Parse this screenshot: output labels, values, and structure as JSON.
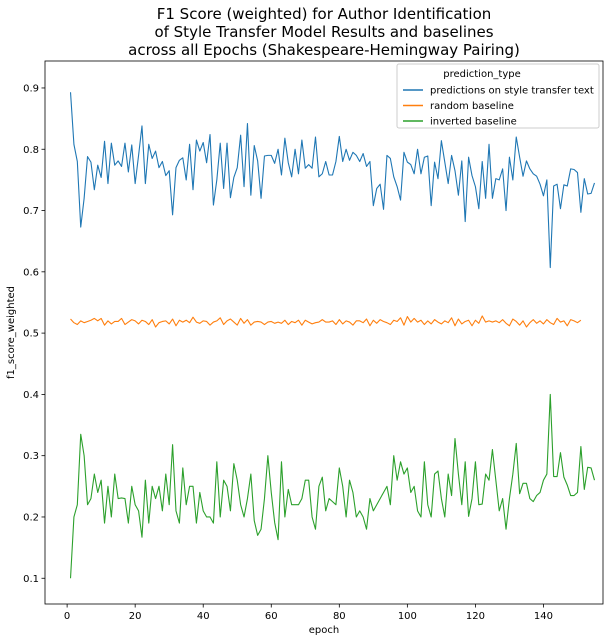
{
  "chart_data": {
    "type": "line",
    "title_lines": [
      "F1 Score (weighted) for Author Identification",
      "of Style Transfer Model Results and baselines",
      "across all Epochs (Shakespeare-Hemingway Pairing)"
    ],
    "xlabel": "epoch",
    "ylabel": "f1_score_weighted",
    "xlim": [
      -6.5,
      157.5
    ],
    "ylim": [
      0.058,
      0.944
    ],
    "xticks": [
      0,
      20,
      40,
      60,
      80,
      100,
      120,
      140
    ],
    "yticks": [
      0.1,
      0.2,
      0.3,
      0.4,
      0.5,
      0.6,
      0.7,
      0.8,
      0.9
    ],
    "legend": {
      "title": "prediction_type",
      "position": "top-right"
    },
    "series": [
      {
        "name": "predictions on style transfer text",
        "color": "#1f77b4",
        "values": [
          0.893,
          0.808,
          0.78,
          0.673,
          0.72,
          0.788,
          0.779,
          0.734,
          0.774,
          0.754,
          0.813,
          0.744,
          0.81,
          0.774,
          0.781,
          0.772,
          0.81,
          0.763,
          0.807,
          0.744,
          0.79,
          0.838,
          0.744,
          0.808,
          0.785,
          0.797,
          0.77,
          0.78,
          0.757,
          0.765,
          0.693,
          0.77,
          0.782,
          0.786,
          0.75,
          0.808,
          0.734,
          0.815,
          0.797,
          0.811,
          0.778,
          0.824,
          0.709,
          0.75,
          0.81,
          0.736,
          0.81,
          0.721,
          0.754,
          0.77,
          0.823,
          0.739,
          0.842,
          0.725,
          0.806,
          0.781,
          0.72,
          0.789,
          0.79,
          0.79,
          0.777,
          0.8,
          0.758,
          0.818,
          0.778,
          0.755,
          0.8,
          0.76,
          0.815,
          0.769,
          0.775,
          0.769,
          0.82,
          0.755,
          0.76,
          0.78,
          0.758,
          0.758,
          0.78,
          0.821,
          0.78,
          0.8,
          0.782,
          0.795,
          0.79,
          0.78,
          0.793,
          0.772,
          0.78,
          0.708,
          0.736,
          0.743,
          0.702,
          0.79,
          0.785,
          0.755,
          0.739,
          0.717,
          0.795,
          0.779,
          0.775,
          0.76,
          0.8,
          0.76,
          0.787,
          0.789,
          0.708,
          0.779,
          0.752,
          0.814,
          0.779,
          0.744,
          0.79,
          0.765,
          0.725,
          0.781,
          0.682,
          0.787,
          0.757,
          0.739,
          0.703,
          0.78,
          0.72,
          0.808,
          0.72,
          0.752,
          0.75,
          0.768,
          0.7,
          0.787,
          0.75,
          0.82,
          0.787,
          0.756,
          0.781,
          0.768,
          0.76,
          0.756,
          0.743,
          0.724,
          0.75,
          0.607,
          0.74,
          0.743,
          0.703,
          0.742,
          0.74,
          0.768,
          0.767,
          0.762,
          0.697,
          0.752,
          0.727,
          0.728,
          0.745
        ]
      },
      {
        "name": "random baseline",
        "color": "#ff7f0e",
        "values": [
          0.523,
          0.517,
          0.514,
          0.52,
          0.517,
          0.519,
          0.521,
          0.524,
          0.52,
          0.524,
          0.513,
          0.52,
          0.515,
          0.519,
          0.519,
          0.524,
          0.514,
          0.518,
          0.522,
          0.52,
          0.515,
          0.521,
          0.519,
          0.514,
          0.522,
          0.51,
          0.517,
          0.519,
          0.52,
          0.515,
          0.523,
          0.512,
          0.521,
          0.518,
          0.521,
          0.517,
          0.526,
          0.518,
          0.516,
          0.52,
          0.519,
          0.513,
          0.518,
          0.52,
          0.525,
          0.514,
          0.52,
          0.523,
          0.518,
          0.513,
          0.524,
          0.516,
          0.522,
          0.513,
          0.518,
          0.519,
          0.518,
          0.514,
          0.518,
          0.519,
          0.516,
          0.518,
          0.516,
          0.521,
          0.514,
          0.519,
          0.517,
          0.521,
          0.513,
          0.521,
          0.518,
          0.515,
          0.517,
          0.518,
          0.522,
          0.518,
          0.518,
          0.52,
          0.514,
          0.522,
          0.515,
          0.52,
          0.518,
          0.513,
          0.52,
          0.52,
          0.517,
          0.523,
          0.512,
          0.521,
          0.516,
          0.522,
          0.519,
          0.517,
          0.514,
          0.521,
          0.519,
          0.525,
          0.513,
          0.527,
          0.518,
          0.524,
          0.518,
          0.521,
          0.514,
          0.52,
          0.515,
          0.522,
          0.518,
          0.515,
          0.52,
          0.517,
          0.525,
          0.512,
          0.523,
          0.515,
          0.519,
          0.521,
          0.512,
          0.521,
          0.516,
          0.528,
          0.518,
          0.52,
          0.518,
          0.52,
          0.517,
          0.522,
          0.516,
          0.512,
          0.523,
          0.519,
          0.513,
          0.52,
          0.51,
          0.517,
          0.522,
          0.516,
          0.52,
          0.515,
          0.522,
          0.517,
          0.514,
          0.524,
          0.518,
          0.52,
          0.512,
          0.522,
          0.52,
          0.517,
          0.521
        ]
      },
      {
        "name": "inverted baseline",
        "color": "#2ca02c",
        "values": [
          0.1,
          0.2,
          0.22,
          0.335,
          0.3,
          0.22,
          0.23,
          0.27,
          0.24,
          0.26,
          0.19,
          0.25,
          0.2,
          0.27,
          0.23,
          0.231,
          0.23,
          0.19,
          0.25,
          0.22,
          0.21,
          0.167,
          0.26,
          0.19,
          0.25,
          0.23,
          0.25,
          0.21,
          0.27,
          0.22,
          0.318,
          0.21,
          0.19,
          0.28,
          0.22,
          0.25,
          0.25,
          0.19,
          0.24,
          0.21,
          0.2,
          0.2,
          0.19,
          0.29,
          0.2,
          0.26,
          0.25,
          0.21,
          0.287,
          0.26,
          0.22,
          0.2,
          0.23,
          0.27,
          0.194,
          0.17,
          0.18,
          0.23,
          0.3,
          0.24,
          0.191,
          0.163,
          0.29,
          0.2,
          0.245,
          0.22,
          0.22,
          0.22,
          0.23,
          0.26,
          0.26,
          0.2,
          0.18,
          0.25,
          0.265,
          0.21,
          0.23,
          0.225,
          0.22,
          0.28,
          0.25,
          0.2,
          0.26,
          0.24,
          0.2,
          0.21,
          0.2,
          0.18,
          0.23,
          0.21,
          0.22,
          0.23,
          0.24,
          0.25,
          0.22,
          0.3,
          0.26,
          0.29,
          0.27,
          0.28,
          0.24,
          0.25,
          0.21,
          0.2,
          0.29,
          0.22,
          0.2,
          0.27,
          0.275,
          0.23,
          0.2,
          0.27,
          0.235,
          0.328,
          0.27,
          0.22,
          0.29,
          0.201,
          0.23,
          0.29,
          0.22,
          0.221,
          0.27,
          0.26,
          0.31,
          0.26,
          0.21,
          0.23,
          0.18,
          0.23,
          0.27,
          0.32,
          0.238,
          0.255,
          0.255,
          0.23,
          0.225,
          0.235,
          0.24,
          0.26,
          0.27,
          0.4,
          0.266,
          0.266,
          0.305,
          0.265,
          0.252,
          0.235,
          0.235,
          0.24,
          0.315,
          0.245,
          0.281,
          0.28,
          0.26
        ]
      }
    ]
  }
}
